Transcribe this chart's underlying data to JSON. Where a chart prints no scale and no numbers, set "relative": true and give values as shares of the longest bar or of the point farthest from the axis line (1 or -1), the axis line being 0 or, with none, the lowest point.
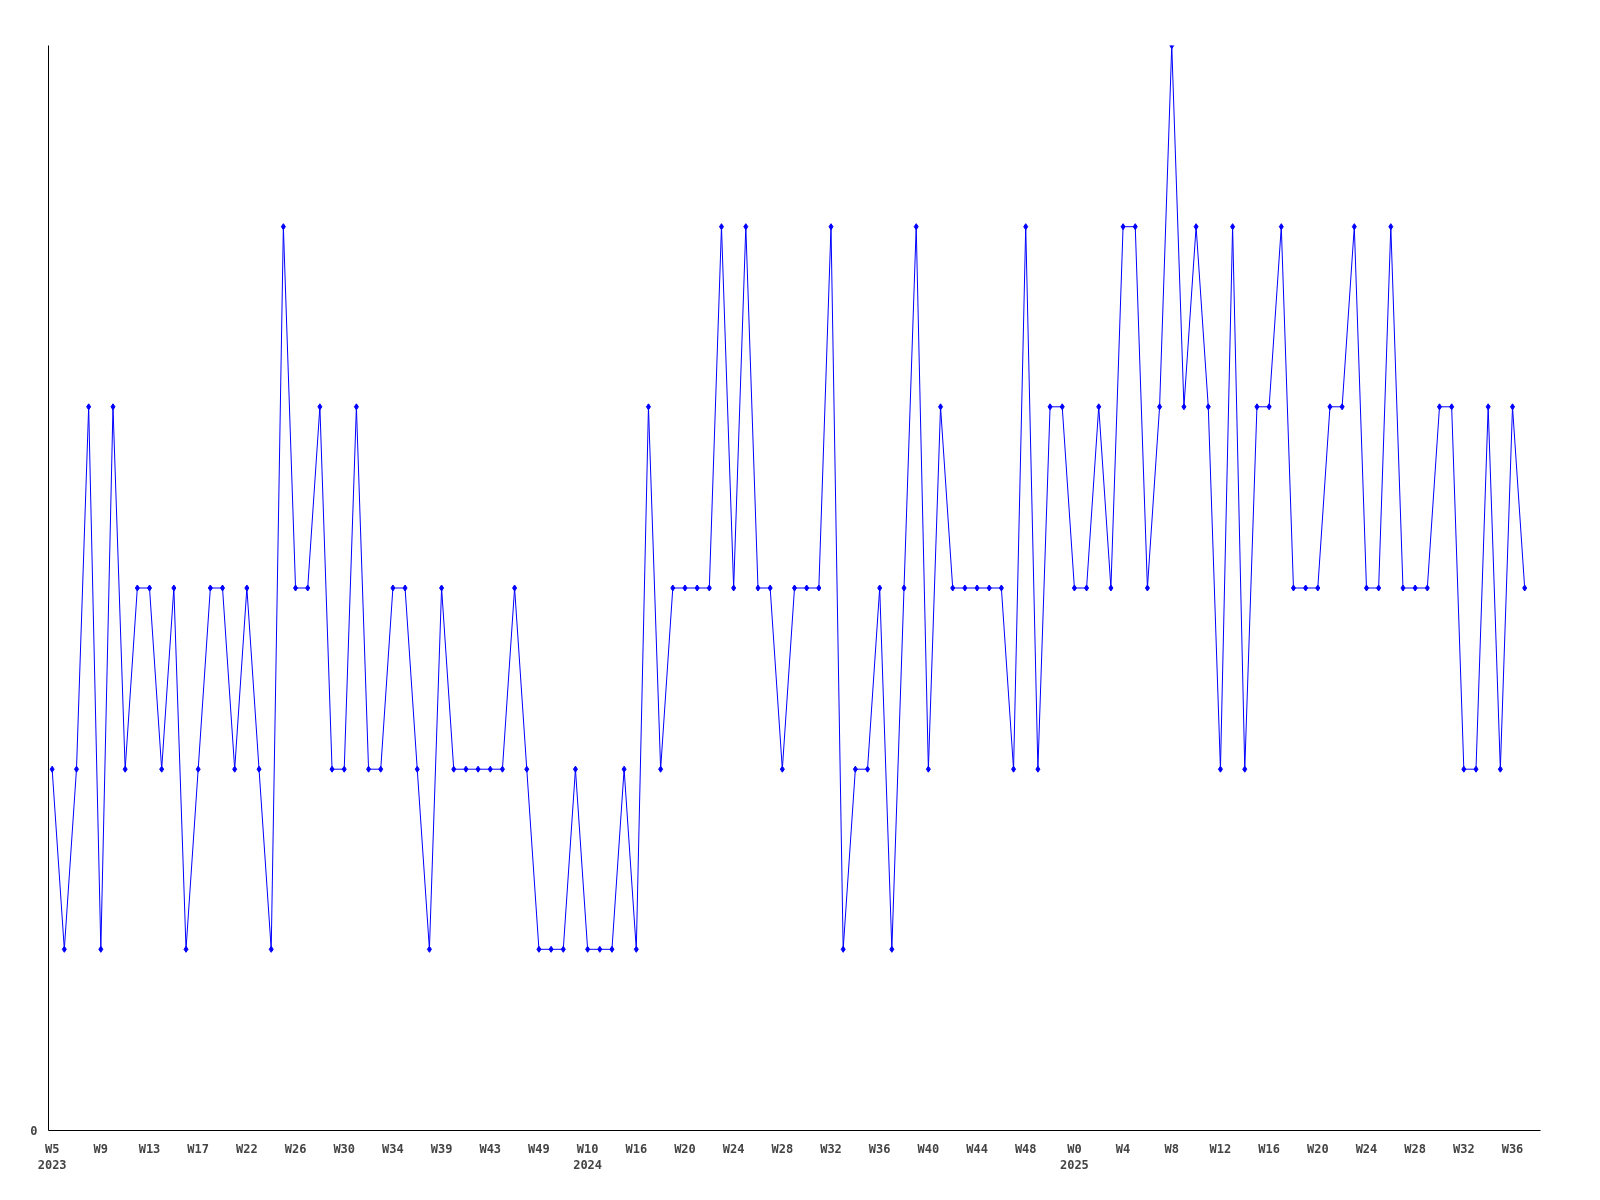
{
  "chart_data": {
    "type": "line",
    "relative": true,
    "marker": "diamond",
    "line_style": "solid",
    "grid": false,
    "annotations": [
      "0"
    ],
    "categories": [
      "W5\n2023",
      null,
      null,
      null,
      "W9",
      null,
      null,
      null,
      "W13",
      null,
      null,
      null,
      "W17",
      null,
      null,
      null,
      "W22",
      null,
      null,
      null,
      "W26",
      null,
      null,
      null,
      "W30",
      null,
      null,
      null,
      "W34",
      null,
      null,
      null,
      "W39",
      null,
      null,
      null,
      "W43",
      null,
      null,
      null,
      "W49",
      null,
      null,
      null,
      "W10\n2024",
      null,
      null,
      null,
      "W16",
      null,
      null,
      null,
      "W20",
      null,
      null,
      null,
      "W24",
      null,
      null,
      null,
      "W28",
      null,
      null,
      null,
      "W32",
      null,
      null,
      null,
      "W36",
      null,
      null,
      null,
      "W40",
      null,
      null,
      null,
      "W44",
      null,
      null,
      null,
      "W48",
      null,
      null,
      null,
      "W0\n2025",
      null,
      null,
      null,
      "W4",
      null,
      null,
      null,
      "W8",
      null,
      null,
      null,
      "W12",
      null,
      null,
      null,
      "W16",
      null,
      null,
      null,
      "W20",
      null,
      null,
      null,
      "W24",
      null,
      null,
      null,
      "W28",
      null,
      null,
      null,
      "W32",
      null,
      null,
      null,
      "W36",
      null
    ],
    "series": [
      {
        "color": "#0000ff",
        "values": [
          0.333,
          0.167,
          0.333,
          0.667,
          0.167,
          0.667,
          0.333,
          0.5,
          0.5,
          0.333,
          0.5,
          0.167,
          0.333,
          0.5,
          0.5,
          0.333,
          0.5,
          0.333,
          0.167,
          0.833,
          0.5,
          0.5,
          0.667,
          0.333,
          0.333,
          0.667,
          0.333,
          0.333,
          0.5,
          0.5,
          0.333,
          0.167,
          0.5,
          0.333,
          0.333,
          0.333,
          0.333,
          0.333,
          0.5,
          0.333,
          0.167,
          0.167,
          0.167,
          0.333,
          0.167,
          0.167,
          0.167,
          0.333,
          0.167,
          0.667,
          0.333,
          0.5,
          0.5,
          0.5,
          0.5,
          0.833,
          0.5,
          0.833,
          0.5,
          0.5,
          0.333,
          0.5,
          0.5,
          0.5,
          0.833,
          0.167,
          0.333,
          0.333,
          0.5,
          0.167,
          0.5,
          0.833,
          0.333,
          0.667,
          0.5,
          0.5,
          0.5,
          0.5,
          0.5,
          0.333,
          0.833,
          0.333,
          0.667,
          0.667,
          0.5,
          0.5,
          0.667,
          0.5,
          0.833,
          0.833,
          0.5,
          0.667,
          1,
          0.667,
          0.833,
          0.667,
          0.333,
          0.833,
          0.333,
          0.667,
          0.667,
          0.833,
          0.5,
          0.5,
          0.5,
          0.667,
          0.667,
          0.833,
          0.5,
          0.5,
          0.833,
          0.5,
          0.5,
          0.5,
          0.667,
          0.667,
          0.333,
          0.333,
          0.667,
          0.333,
          0.667,
          0.5
        ]
      }
    ]
  }
}
